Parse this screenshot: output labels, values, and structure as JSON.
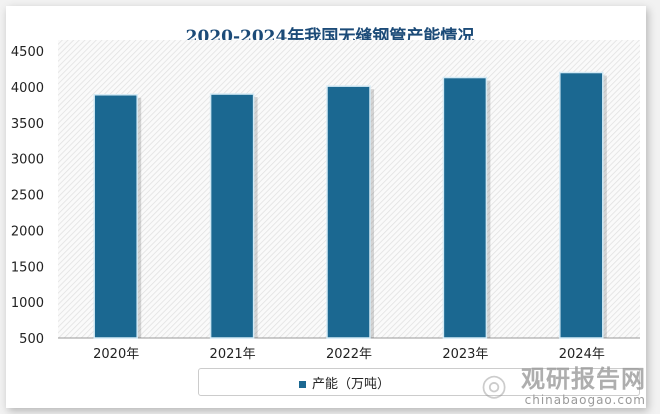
{
  "chart_data": {
    "type": "bar",
    "title": "2020-2024年我国无缝钢管产能情况",
    "categories": [
      "2020年",
      "2021年",
      "2022年",
      "2023年",
      "2024年"
    ],
    "series": [
      {
        "name": "产能（万吨）",
        "values": [
          3890,
          3900,
          4010,
          4130,
          4200
        ]
      }
    ],
    "ylim": [
      500,
      4500
    ],
    "yticks": [
      "500",
      "1000",
      "1500",
      "2000",
      "2500",
      "3000",
      "3500",
      "4000",
      "4500"
    ],
    "xlabel": "",
    "ylabel": "",
    "legend": "bottom",
    "color": "#1b6891"
  },
  "watermark": {
    "cn": "观研报告网",
    "en": "chinabaogao.com"
  }
}
